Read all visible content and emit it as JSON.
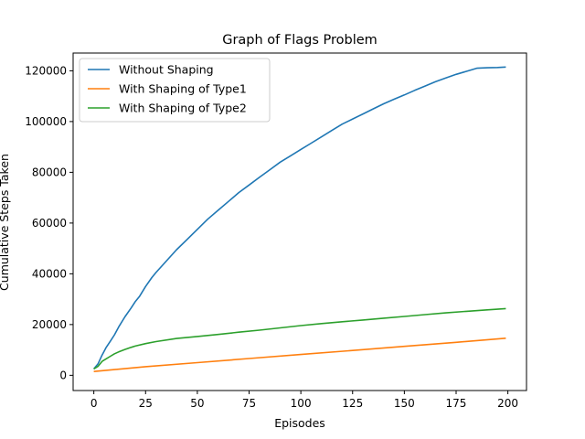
{
  "chart_data": {
    "type": "line",
    "title": "Graph of Flags Problem",
    "xlabel": "Episodes",
    "ylabel": "Cumulative Steps Taken",
    "xlim": [
      -10,
      209
    ],
    "ylim": [
      -6000,
      127000
    ],
    "xticks": [
      0,
      25,
      50,
      75,
      100,
      125,
      150,
      175,
      200
    ],
    "yticks": [
      0,
      20000,
      40000,
      60000,
      80000,
      100000,
      120000
    ],
    "grid": false,
    "legend_position": "top-left",
    "series": [
      {
        "name": "Without Shaping",
        "color": "#1f77b4",
        "x": [
          0,
          2,
          4,
          6,
          8,
          10,
          12,
          15,
          18,
          20,
          22,
          25,
          28,
          30,
          35,
          40,
          45,
          50,
          55,
          60,
          65,
          70,
          75,
          80,
          85,
          90,
          95,
          100,
          105,
          110,
          115,
          120,
          125,
          130,
          135,
          140,
          145,
          150,
          155,
          160,
          165,
          170,
          175,
          180,
          185,
          190,
          195,
          199
        ],
        "y": [
          2500,
          4500,
          8000,
          11000,
          13500,
          16000,
          19000,
          23000,
          26500,
          29000,
          31000,
          35000,
          38500,
          40500,
          45000,
          49500,
          53500,
          57500,
          61500,
          65000,
          68500,
          72000,
          75000,
          78000,
          81000,
          84000,
          86500,
          89000,
          91500,
          94000,
          96500,
          99000,
          101000,
          103000,
          105000,
          107000,
          108800,
          110500,
          112300,
          114000,
          115700,
          117200,
          118600,
          119800,
          121000,
          121200,
          121300,
          121500
        ]
      },
      {
        "name": "With Shaping of Type1",
        "color": "#ff7f0e",
        "x": [
          0,
          25,
          50,
          75,
          100,
          125,
          150,
          175,
          199
        ],
        "y": [
          1500,
          3400,
          5000,
          6600,
          8200,
          9800,
          11400,
          13000,
          14600
        ]
      },
      {
        "name": "With Shaping of Type2",
        "color": "#2ca02c",
        "x": [
          0,
          2,
          4,
          6,
          8,
          10,
          12,
          15,
          18,
          20,
          25,
          30,
          40,
          50,
          60,
          70,
          80,
          90,
          100,
          110,
          120,
          130,
          140,
          150,
          160,
          170,
          180,
          190,
          199
        ],
        "y": [
          2500,
          3500,
          5500,
          6500,
          7500,
          8500,
          9200,
          10200,
          11000,
          11500,
          12500,
          13300,
          14500,
          15300,
          16100,
          17000,
          17800,
          18700,
          19600,
          20400,
          21100,
          21800,
          22500,
          23200,
          23900,
          24600,
          25200,
          25800,
          26300
        ]
      }
    ]
  }
}
